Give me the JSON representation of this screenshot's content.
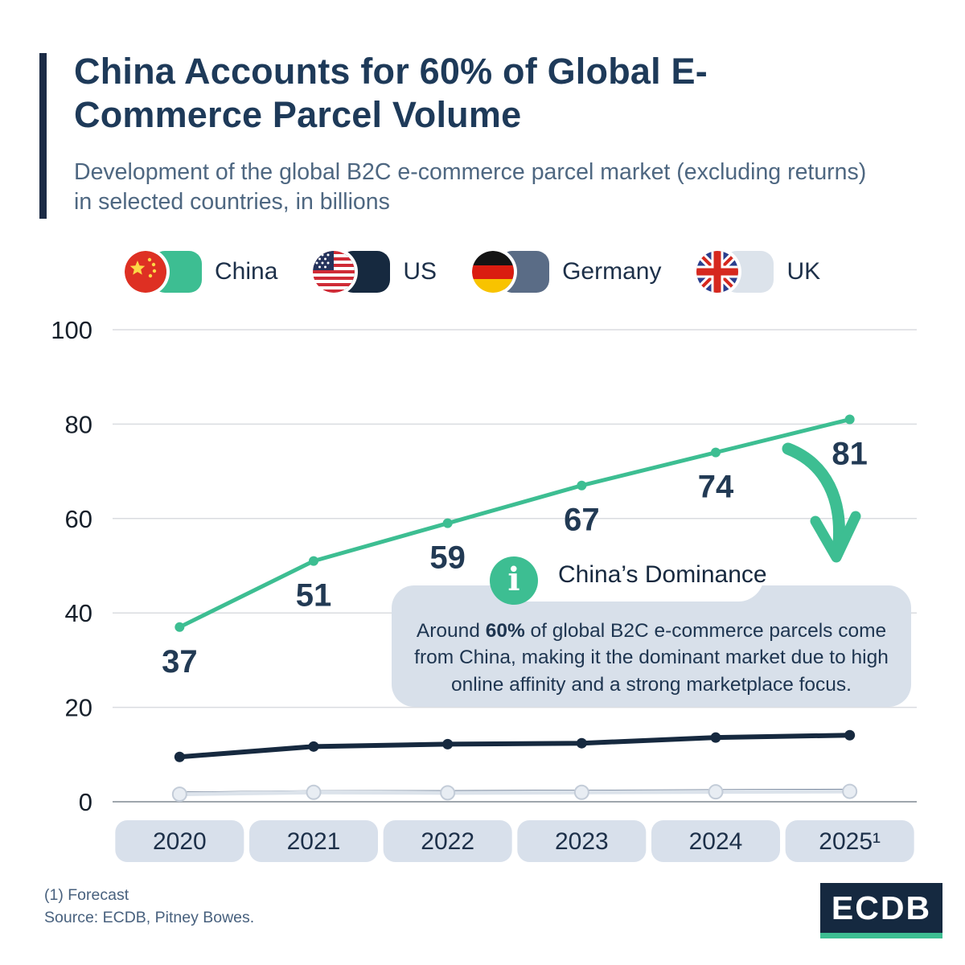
{
  "header": {
    "title": "China Accounts for 60% of Global E-Commerce Parcel Volume",
    "subtitle": "Development of the global B2C e-commerce parcel market (excluding returns) in selected countries, in billions"
  },
  "legend": [
    {
      "label": "China",
      "color": "#3dbe92",
      "icon": "china-flag-icon"
    },
    {
      "label": "US",
      "color": "#16293f",
      "icon": "us-flag-icon"
    },
    {
      "label": "Germany",
      "color": "#5a6c86",
      "icon": "germany-flag-icon"
    },
    {
      "label": "UK",
      "color": "#dce3eb",
      "icon": "uk-flag-icon"
    }
  ],
  "chart_data": {
    "type": "line",
    "x": [
      "2020",
      "2021",
      "2022",
      "2023",
      "2024",
      "2025¹"
    ],
    "series": [
      {
        "name": "China",
        "color": "#3dbe92",
        "values": [
          37,
          51,
          59,
          67,
          74,
          81
        ],
        "labels": [
          "37",
          "51",
          "59",
          "67",
          "74",
          "81"
        ]
      },
      {
        "name": "US",
        "color": "#16293f",
        "values": [
          9.5,
          11.7,
          12.2,
          12.4,
          13.6,
          14.1
        ]
      },
      {
        "name": "Germany",
        "color": "#5a6c86",
        "values": [
          1.8,
          2.1,
          2.1,
          2.2,
          2.3,
          2.4
        ]
      },
      {
        "name": "UK",
        "color": "#dce3eb",
        "values": [
          1.6,
          2.0,
          1.9,
          2.0,
          2.1,
          2.2
        ]
      }
    ],
    "ylim": [
      0,
      100
    ],
    "yticks": [
      0,
      20,
      40,
      60,
      80,
      100
    ],
    "grid": true,
    "legend_position": "top",
    "xlabel": "",
    "ylabel": ""
  },
  "callout": {
    "title": "China’s Dominance",
    "body_prefix": "Around ",
    "body_bold": "60%",
    "body_suffix": " of global B2C e-commerce parcels come from China, making it the dominant market due to high online affinity and a strong marketplace focus.",
    "accent_color": "#3dbe92"
  },
  "footer": {
    "note": "(1) Forecast",
    "source": "Source: ECDB, Pitney Bowes.",
    "logo": "ECDB"
  }
}
